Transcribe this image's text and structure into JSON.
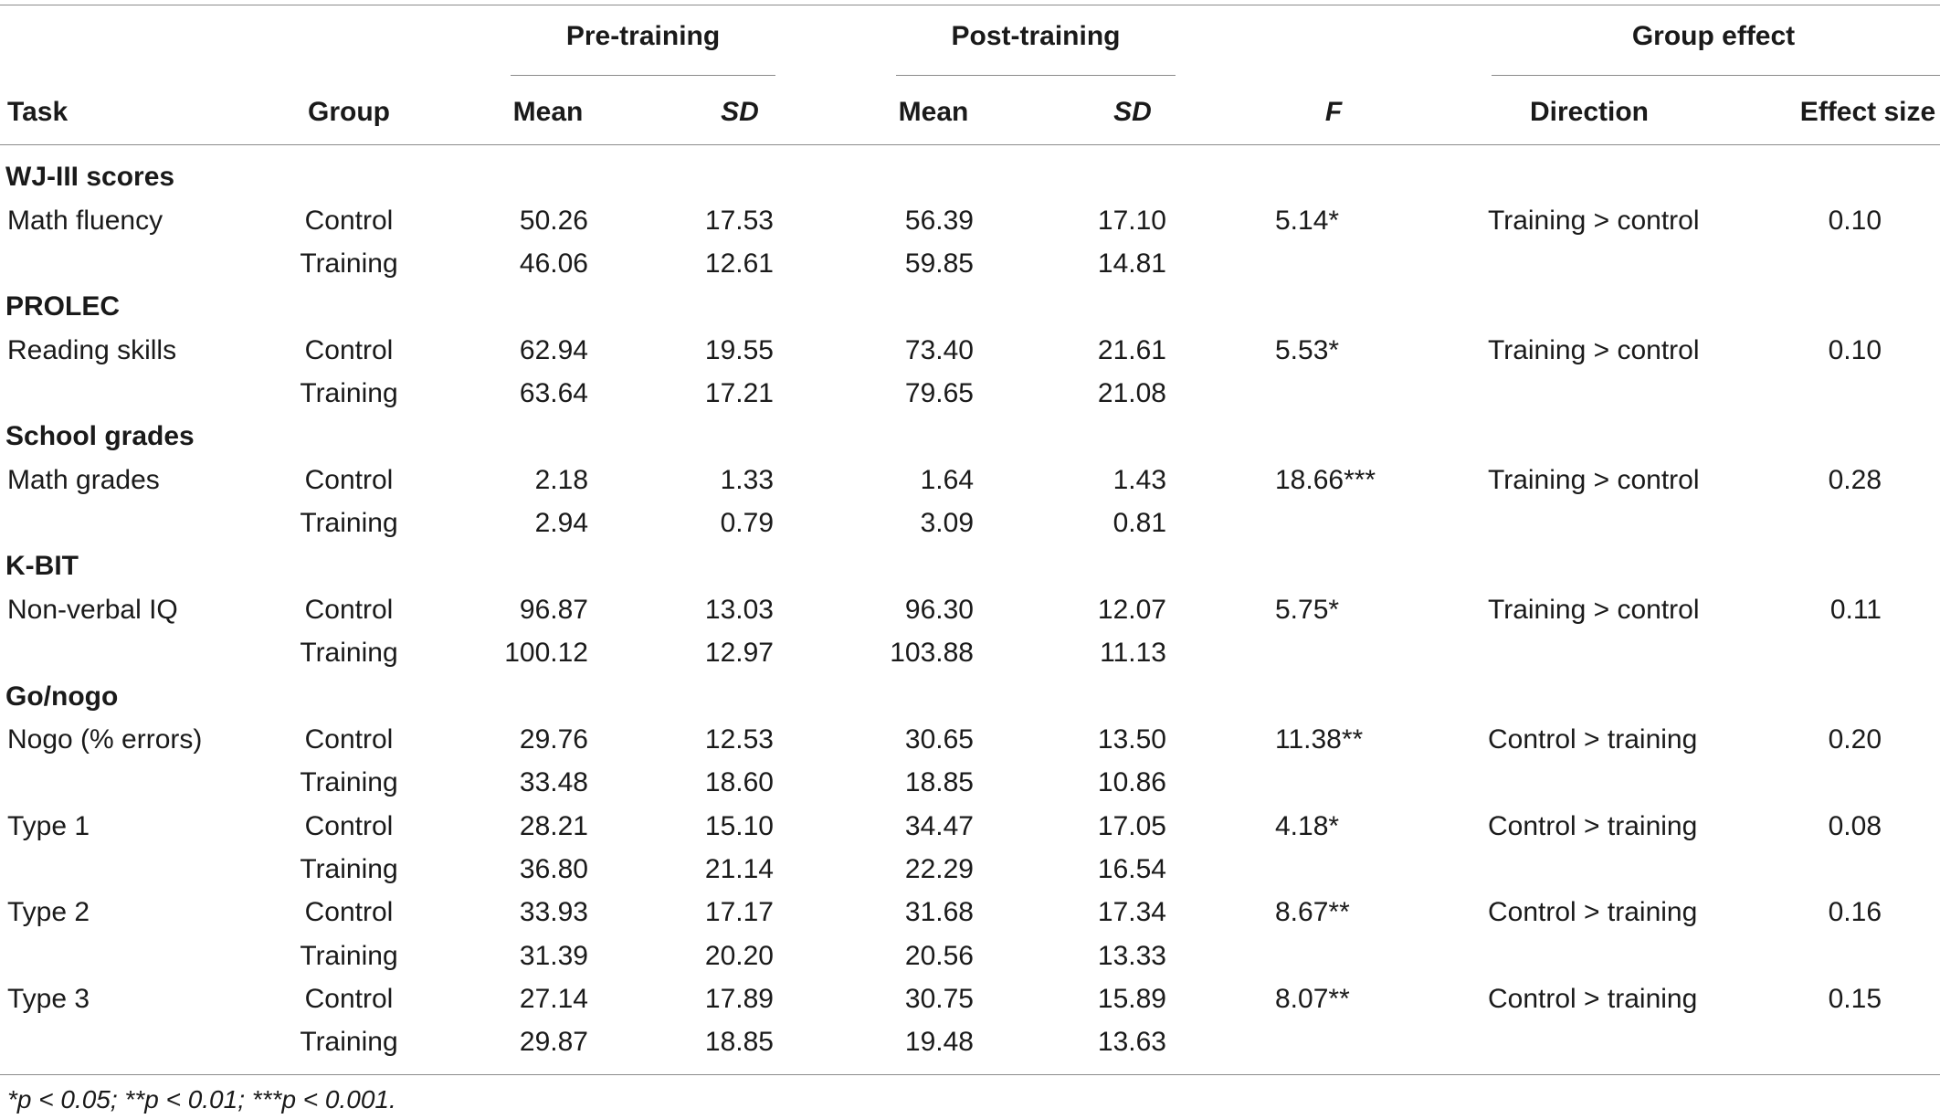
{
  "header": {
    "pre_training": "Pre-training",
    "post_training": "Post-training",
    "group_effect": "Group effect",
    "task": "Task",
    "group": "Group",
    "pre_mean": "Mean",
    "pre_sd": "SD",
    "post_mean": "Mean",
    "post_sd": "SD",
    "f": "F",
    "direction": "Direction",
    "effect_size": "Effect size"
  },
  "rows": [
    {
      "section": "WJ-III scores"
    },
    {
      "task": "Math fluency",
      "group": "Control",
      "pre_mean": "50.26",
      "pre_sd": "17.53",
      "post_mean": "56.39",
      "post_sd": "17.10",
      "f": "5.14*",
      "direction": "Training > control",
      "effect": "0.10"
    },
    {
      "task": "",
      "group": "Training",
      "pre_mean": "46.06",
      "pre_sd": "12.61",
      "post_mean": "59.85",
      "post_sd": "14.81",
      "f": "",
      "direction": "",
      "effect": ""
    },
    {
      "section": "PROLEC"
    },
    {
      "task": "Reading skills",
      "group": "Control",
      "pre_mean": "62.94",
      "pre_sd": "19.55",
      "post_mean": "73.40",
      "post_sd": "21.61",
      "f": "5.53*",
      "direction": "Training > control",
      "effect": "0.10"
    },
    {
      "task": "",
      "group": "Training",
      "pre_mean": "63.64",
      "pre_sd": "17.21",
      "post_mean": "79.65",
      "post_sd": "21.08",
      "f": "",
      "direction": "",
      "effect": ""
    },
    {
      "section": "School grades"
    },
    {
      "task": "Math grades",
      "group": "Control",
      "pre_mean": "2.18",
      "pre_sd": "1.33",
      "post_mean": "1.64",
      "post_sd": "1.43",
      "f": "18.66***",
      "direction": "Training > control",
      "effect": "0.28"
    },
    {
      "task": "",
      "group": "Training",
      "pre_mean": "2.94",
      "pre_sd": "0.79",
      "post_mean": "3.09",
      "post_sd": "0.81",
      "f": "",
      "direction": "",
      "effect": ""
    },
    {
      "section": "K-BIT"
    },
    {
      "task": "Non-verbal IQ",
      "group": "Control",
      "pre_mean": "96.87",
      "pre_sd": "13.03",
      "post_mean": "96.30",
      "post_sd": "12.07",
      "f": "5.75*",
      "direction": "Training > control",
      "effect": "0.11"
    },
    {
      "task": "",
      "group": "Training",
      "pre_mean": "100.12",
      "pre_sd": "12.97",
      "post_mean": "103.88",
      "post_sd": "11.13",
      "f": "",
      "direction": "",
      "effect": ""
    },
    {
      "section": "Go/nogo"
    },
    {
      "task": "Nogo (% errors)",
      "group": "Control",
      "pre_mean": "29.76",
      "pre_sd": "12.53",
      "post_mean": "30.65",
      "post_sd": "13.50",
      "f": "11.38**",
      "direction": "Control > training",
      "effect": "0.20"
    },
    {
      "task": "",
      "group": "Training",
      "pre_mean": "33.48",
      "pre_sd": "18.60",
      "post_mean": "18.85",
      "post_sd": "10.86",
      "f": "",
      "direction": "",
      "effect": ""
    },
    {
      "task": "Type 1",
      "group": "Control",
      "pre_mean": "28.21",
      "pre_sd": "15.10",
      "post_mean": "34.47",
      "post_sd": "17.05",
      "f": "4.18*",
      "direction": "Control > training",
      "effect": "0.08"
    },
    {
      "task": "",
      "group": "Training",
      "pre_mean": "36.80",
      "pre_sd": "21.14",
      "post_mean": "22.29",
      "post_sd": "16.54",
      "f": "",
      "direction": "",
      "effect": ""
    },
    {
      "task": "Type 2",
      "group": "Control",
      "pre_mean": "33.93",
      "pre_sd": "17.17",
      "post_mean": "31.68",
      "post_sd": "17.34",
      "f": "8.67**",
      "direction": "Control > training",
      "effect": "0.16"
    },
    {
      "task": "",
      "group": "Training",
      "pre_mean": "31.39",
      "pre_sd": "20.20",
      "post_mean": "20.56",
      "post_sd": "13.33",
      "f": "",
      "direction": "",
      "effect": ""
    },
    {
      "task": "Type 3",
      "group": "Control",
      "pre_mean": "27.14",
      "pre_sd": "17.89",
      "post_mean": "30.75",
      "post_sd": "15.89",
      "f": "8.07**",
      "direction": "Control > training",
      "effect": "0.15"
    },
    {
      "task": "",
      "group": "Training",
      "pre_mean": "29.87",
      "pre_sd": "18.85",
      "post_mean": "19.48",
      "post_sd": "13.63",
      "f": "",
      "direction": "",
      "effect": ""
    }
  ],
  "footnote": "*p < 0.05; **p < 0.01; ***p < 0.001."
}
